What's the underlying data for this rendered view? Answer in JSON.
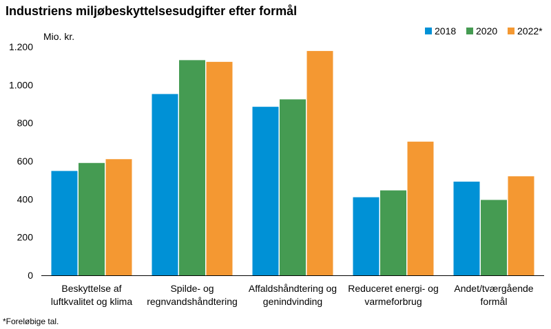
{
  "title": "Industriens miljøbeskyttelsesudgifter efter formål",
  "footnote": "*Foreløbige tal.",
  "chart_data": {
    "type": "bar",
    "unit_label": "Mio. kr.",
    "categories": [
      [
        "Beskyttelse af",
        "luftkvalitet og klima"
      ],
      [
        "Spilde- og",
        "regnvandshåndtering"
      ],
      [
        "Affaldshåndtering og",
        "genindvinding"
      ],
      [
        "Reduceret energi- og",
        "varmeforbrug"
      ],
      [
        "Andet/tværgående",
        "formål"
      ]
    ],
    "series": [
      {
        "name": "2018",
        "color": "#0091d6",
        "values": [
          548,
          952,
          885,
          410,
          492
        ]
      },
      {
        "name": "2020",
        "color": "#459b52",
        "values": [
          590,
          1130,
          924,
          446,
          396
        ]
      },
      {
        "name": "2022*",
        "color": "#f49832",
        "values": [
          610,
          1121,
          1178,
          702,
          520
        ]
      }
    ],
    "ylim": [
      0,
      1200
    ],
    "yticks": [
      0,
      200,
      400,
      600,
      800,
      1000,
      1200
    ],
    "ytick_labels": [
      "0",
      "200",
      "400",
      "600",
      "800",
      "1.000",
      "1.200"
    ],
    "grid": false,
    "legend_position": "top-right"
  }
}
